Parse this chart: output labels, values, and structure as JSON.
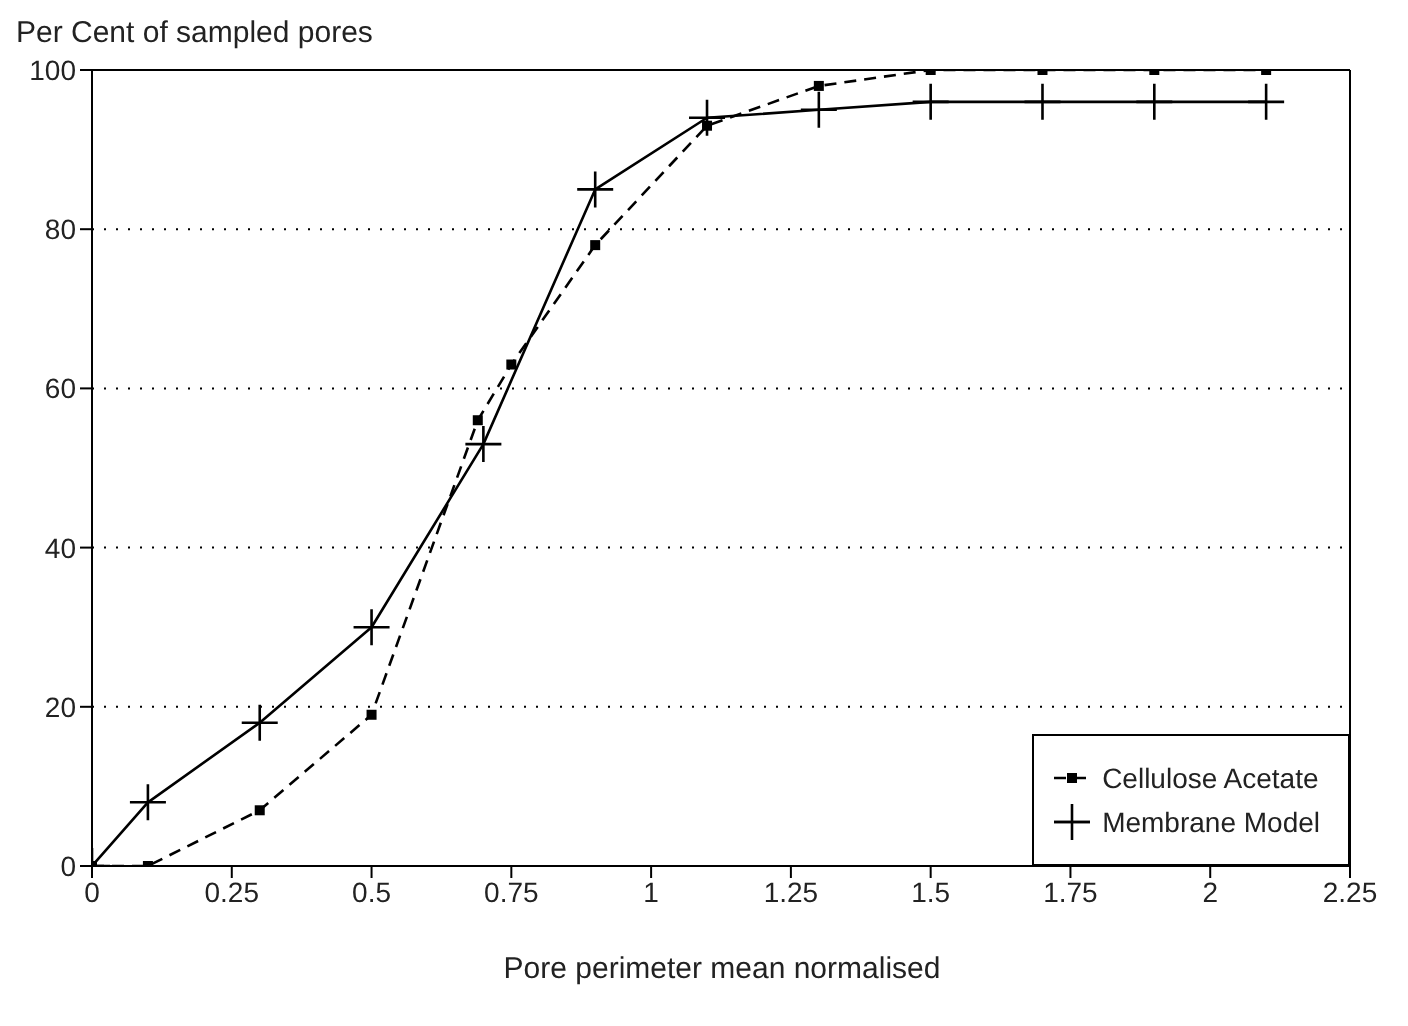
{
  "chart_data": {
    "type": "line",
    "ylabel": "Per Cent of sampled pores",
    "xlabel": "Pore perimeter mean normalised",
    "xlim": [
      0,
      2.25
    ],
    "xticks": [
      0,
      0.25,
      0.5,
      0.75,
      1,
      1.25,
      1.5,
      1.75,
      2,
      2.25
    ],
    "ylim": [
      0,
      100
    ],
    "yticks": [
      0,
      20,
      40,
      60,
      80,
      100
    ],
    "grid": "y",
    "legend": "bottom right",
    "series": [
      {
        "name": "Cellulose Acetate",
        "color": "#000000",
        "line_style": "dashed",
        "marker": "square",
        "x": [
          0,
          0.1,
          0.3,
          0.5,
          0.69,
          0.75,
          0.9,
          1.1,
          1.3,
          1.5,
          1.7,
          1.9,
          2.1
        ],
        "values": [
          0,
          0,
          7,
          19,
          56,
          63,
          78,
          93,
          98,
          100,
          100,
          100,
          100
        ]
      },
      {
        "name": "Membrane Model",
        "color": "#000000",
        "line_style": "solid",
        "marker": "cross",
        "x": [
          0,
          0.1,
          0.3,
          0.5,
          0.7,
          0.9,
          1.1,
          1.3,
          1.5,
          1.7,
          1.9,
          2.1
        ],
        "values": [
          0,
          8,
          18,
          30,
          53,
          85,
          94,
          95,
          96,
          96,
          96,
          96
        ]
      }
    ]
  }
}
